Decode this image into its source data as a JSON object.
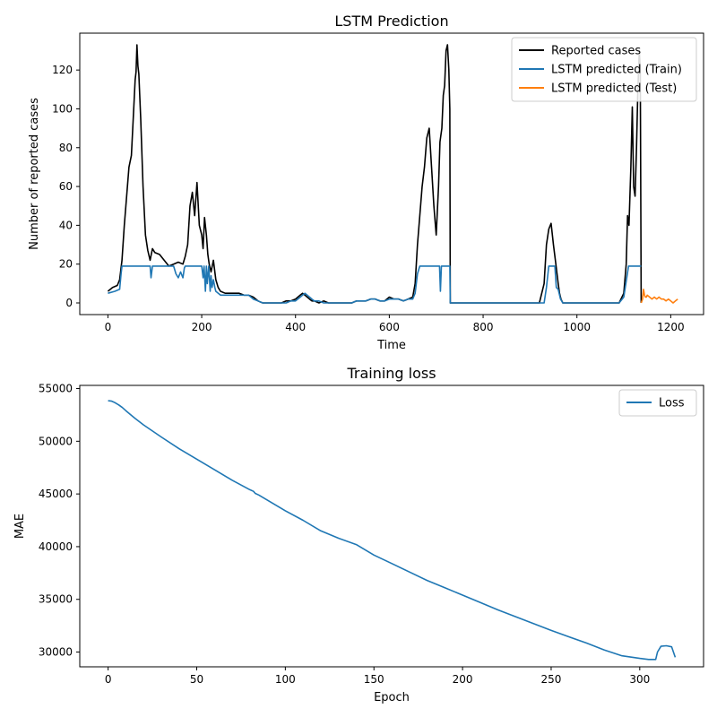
{
  "chart_data": [
    {
      "type": "line",
      "title": "LSTM Prediction",
      "xlabel": "Time",
      "ylabel": "Number of reported cases",
      "xlim": [
        -60,
        1270
      ],
      "ylim": [
        -6,
        139
      ],
      "xticks": [
        0,
        200,
        400,
        600,
        800,
        1000,
        1200
      ],
      "yticks": [
        0,
        20,
        40,
        60,
        80,
        100,
        120
      ],
      "grid": false,
      "legend": "top-right",
      "series": [
        {
          "name": "Reported cases",
          "color": "#000000",
          "x": [
            0,
            10,
            20,
            25,
            30,
            35,
            40,
            45,
            50,
            55,
            58,
            60,
            62,
            64,
            66,
            70,
            75,
            80,
            85,
            90,
            95,
            100,
            110,
            120,
            130,
            140,
            150,
            160,
            165,
            170,
            175,
            180,
            185,
            190,
            195,
            200,
            203,
            206,
            210,
            213,
            216,
            220,
            225,
            230,
            235,
            240,
            250,
            260,
            270,
            280,
            290,
            300,
            310,
            320,
            330,
            340,
            350,
            360,
            370,
            380,
            390,
            400,
            410,
            415,
            420,
            425,
            430,
            435,
            440,
            450,
            460,
            470,
            480,
            490,
            500,
            510,
            520,
            530,
            540,
            550,
            560,
            570,
            580,
            590,
            600,
            610,
            620,
            630,
            640,
            650,
            655,
            660,
            665,
            670,
            675,
            680,
            685,
            690,
            695,
            700,
            705,
            708,
            712,
            715,
            718,
            721,
            724,
            727,
            729,
            730,
            740,
            760,
            780,
            800,
            820,
            840,
            860,
            880,
            900,
            920,
            930,
            935,
            940,
            945,
            950,
            955,
            960,
            963,
            966,
            970,
            980,
            1000,
            1020,
            1040,
            1060,
            1080,
            1090,
            1100,
            1105,
            1108,
            1111,
            1115,
            1118,
            1121,
            1124,
            1127,
            1130,
            1133,
            1135,
            1137
          ],
          "y": [
            6,
            8,
            9,
            12,
            22,
            40,
            55,
            70,
            76,
            100,
            115,
            119,
            133,
            122,
            118,
            95,
            60,
            35,
            27,
            22,
            28,
            26,
            25,
            22,
            19,
            20,
            21,
            20,
            24,
            30,
            50,
            57,
            45,
            62,
            40,
            35,
            28,
            44,
            35,
            25,
            20,
            16,
            22,
            12,
            8,
            6,
            5,
            5,
            5,
            5,
            4,
            4,
            3,
            1,
            0,
            0,
            0,
            0,
            0,
            1,
            1,
            2,
            4,
            5,
            4,
            3,
            2,
            1,
            1,
            0,
            1,
            0,
            0,
            0,
            0,
            0,
            0,
            1,
            1,
            1,
            2,
            2,
            1,
            1,
            3,
            2,
            2,
            1,
            2,
            3,
            10,
            30,
            45,
            60,
            70,
            85,
            90,
            70,
            50,
            35,
            60,
            83,
            90,
            107,
            112,
            130,
            133,
            120,
            100,
            0,
            0,
            0,
            0,
            0,
            0,
            0,
            0,
            0,
            0,
            0,
            10,
            30,
            38,
            41,
            30,
            20,
            10,
            5,
            2,
            0,
            0,
            0,
            0,
            0,
            0,
            0,
            0,
            5,
            20,
            45,
            40,
            70,
            101,
            60,
            55,
            80,
            110,
            130,
            120,
            0
          ]
        },
        {
          "name": "LSTM predicted (Train)",
          "color": "#1f77b4",
          "x": [
            0,
            15,
            25,
            28,
            30,
            35,
            50,
            80,
            90,
            92,
            95,
            100,
            120,
            130,
            140,
            145,
            150,
            155,
            160,
            163,
            165,
            170,
            180,
            200,
            203,
            205,
            208,
            210,
            212,
            215,
            218,
            220,
            222,
            225,
            228,
            230,
            240,
            250,
            260,
            270,
            280,
            290,
            300,
            305,
            310,
            320,
            330,
            340,
            350,
            360,
            370,
            380,
            390,
            400,
            410,
            415,
            420,
            425,
            430,
            435,
            440,
            450,
            460,
            470,
            480,
            490,
            500,
            510,
            520,
            530,
            540,
            550,
            560,
            570,
            580,
            590,
            600,
            610,
            620,
            630,
            640,
            650,
            655,
            660,
            665,
            670,
            675,
            680,
            690,
            700,
            705,
            707,
            709,
            711,
            715,
            720,
            728,
            729,
            730,
            740,
            760,
            780,
            800,
            820,
            840,
            860,
            880,
            900,
            920,
            930,
            935,
            940,
            945,
            948,
            950,
            953,
            956,
            960,
            965,
            970,
            980,
            1000,
            1020,
            1040,
            1060,
            1080,
            1090,
            1100,
            1110,
            1120,
            1130,
            1135,
            1137
          ],
          "y": [
            5,
            6,
            7,
            15,
            19,
            19,
            19,
            19,
            19,
            13,
            19,
            19,
            19,
            19,
            19,
            15,
            13,
            16,
            13,
            18,
            19,
            19,
            19,
            19,
            13,
            19,
            6,
            19,
            10,
            19,
            6,
            14,
            8,
            12,
            8,
            6,
            4,
            4,
            4,
            4,
            4,
            4,
            4,
            3,
            2,
            1,
            0,
            0,
            0,
            0,
            0,
            0,
            1,
            1,
            3,
            4,
            5,
            4,
            3,
            2,
            1,
            1,
            0,
            0,
            0,
            0,
            0,
            0,
            0,
            1,
            1,
            1,
            2,
            2,
            1,
            1,
            2,
            2,
            2,
            1,
            2,
            2,
            5,
            15,
            19,
            19,
            19,
            19,
            19,
            19,
            19,
            19,
            6,
            19,
            19,
            19,
            19,
            19,
            0,
            0,
            0,
            0,
            0,
            0,
            0,
            0,
            0,
            0,
            0,
            0,
            8,
            19,
            19,
            19,
            19,
            19,
            8,
            7,
            2,
            0,
            0,
            0,
            0,
            0,
            0,
            0,
            0,
            3,
            19,
            19,
            19,
            19,
            19
          ]
        },
        {
          "name": "LSTM predicted (Test)",
          "color": "#ff7f0e",
          "x": [
            1137,
            1140,
            1142,
            1144,
            1146,
            1148,
            1150,
            1155,
            1160,
            1165,
            1170,
            1175,
            1180,
            1185,
            1190,
            1195,
            1200,
            1205,
            1210,
            1215
          ],
          "y": [
            0,
            2,
            7,
            4,
            3,
            3,
            4,
            3,
            2,
            3,
            2,
            3,
            2,
            2,
            1,
            2,
            1,
            0,
            1,
            2
          ]
        }
      ]
    },
    {
      "type": "line",
      "title": "Training loss",
      "xlabel": "Epoch",
      "ylabel": "MAE",
      "xlim": [
        -16,
        336
      ],
      "ylim": [
        28600,
        55300
      ],
      "xticks": [
        0,
        50,
        100,
        150,
        200,
        250,
        300
      ],
      "yticks": [
        30000,
        35000,
        40000,
        45000,
        50000,
        55000
      ],
      "grid": false,
      "legend": "top-right",
      "series": [
        {
          "name": "Loss",
          "color": "#1f77b4",
          "x": [
            0,
            2,
            4,
            6,
            8,
            10,
            15,
            20,
            30,
            40,
            50,
            60,
            70,
            80,
            82,
            83,
            85,
            90,
            100,
            110,
            120,
            130,
            140,
            150,
            160,
            170,
            180,
            190,
            200,
            210,
            220,
            230,
            240,
            250,
            260,
            270,
            280,
            290,
            300,
            305,
            309,
            310,
            312,
            315,
            318,
            320
          ],
          "y": [
            53850,
            53800,
            53650,
            53450,
            53200,
            52900,
            52200,
            51550,
            50400,
            49300,
            48300,
            47300,
            46300,
            45400,
            45250,
            45050,
            44900,
            44400,
            43400,
            42500,
            41500,
            40800,
            40200,
            39200,
            38400,
            37600,
            36800,
            36100,
            35400,
            34700,
            34000,
            33350,
            32700,
            32050,
            31450,
            30850,
            30200,
            29650,
            29400,
            29300,
            29300,
            30000,
            30550,
            30600,
            30500,
            29500
          ]
        }
      ]
    }
  ]
}
